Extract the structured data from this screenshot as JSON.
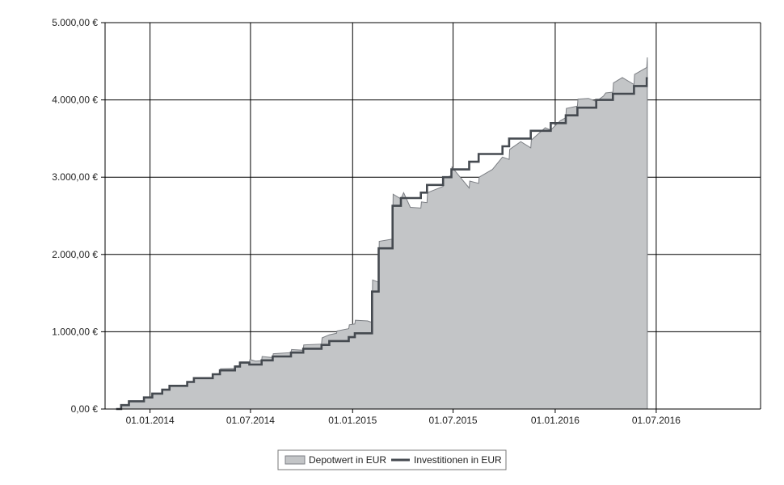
{
  "chart_data": {
    "type": "area",
    "x_axis": {
      "type": "date",
      "min": "2013-10-12",
      "max": "2017-01-05",
      "ticks": [
        {
          "date": "2014-01-01",
          "label": "01.01.2014"
        },
        {
          "date": "2014-07-01",
          "label": "01.07.2014"
        },
        {
          "date": "2015-01-01",
          "label": "01.01.2015"
        },
        {
          "date": "2015-07-01",
          "label": "01.07.2015"
        },
        {
          "date": "2016-01-01",
          "label": "01.01.2016"
        },
        {
          "date": "2016-07-01",
          "label": "01.07.2016"
        }
      ]
    },
    "y_axis": {
      "min": 0,
      "max": 5000,
      "ticks": [
        {
          "value": 0,
          "label": "0,00 €"
        },
        {
          "value": 1000,
          "label": "1.000,00 €"
        },
        {
          "value": 2000,
          "label": "2.000,00 €"
        },
        {
          "value": 3000,
          "label": "3.000,00 €"
        },
        {
          "value": 4000,
          "label": "4.000,00 €"
        },
        {
          "value": 5000,
          "label": "5.000,00 €"
        }
      ]
    },
    "grid": true,
    "legend_position": "bottom",
    "series": [
      {
        "name": "Depotwert in EUR",
        "kind": "area",
        "color": "#c3c5c7",
        "edge_color": "#7c7f84",
        "points": [
          [
            "2013-11-01",
            0
          ],
          [
            "2013-11-10",
            0
          ],
          [
            "2013-11-11",
            50
          ],
          [
            "2013-11-24",
            50
          ],
          [
            "2013-11-25",
            100
          ],
          [
            "2013-12-21",
            100
          ],
          [
            "2013-12-22",
            150
          ],
          [
            "2014-01-05",
            150
          ],
          [
            "2014-01-06",
            200
          ],
          [
            "2014-01-23",
            200
          ],
          [
            "2014-01-24",
            250
          ],
          [
            "2014-02-05",
            250
          ],
          [
            "2014-02-06",
            300
          ],
          [
            "2014-03-09",
            300
          ],
          [
            "2014-03-10",
            350
          ],
          [
            "2014-03-21",
            350
          ],
          [
            "2014-03-22",
            400
          ],
          [
            "2014-04-24",
            400
          ],
          [
            "2014-04-25",
            450
          ],
          [
            "2014-05-07",
            460
          ],
          [
            "2014-05-08",
            520
          ],
          [
            "2014-06-03",
            525
          ],
          [
            "2014-06-04",
            560
          ],
          [
            "2014-06-12",
            560
          ],
          [
            "2014-06-13",
            610
          ],
          [
            "2014-06-29",
            610
          ],
          [
            "2014-06-30",
            640
          ],
          [
            "2014-07-10",
            620
          ],
          [
            "2014-07-21",
            625
          ],
          [
            "2014-07-22",
            680
          ],
          [
            "2014-08-10",
            665
          ],
          [
            "2014-08-11",
            715
          ],
          [
            "2014-09-12",
            730
          ],
          [
            "2014-09-13",
            770
          ],
          [
            "2014-10-04",
            760
          ],
          [
            "2014-10-05",
            830
          ],
          [
            "2014-11-06",
            840
          ],
          [
            "2014-11-07",
            920
          ],
          [
            "2014-11-20",
            960
          ],
          [
            "2014-12-03",
            980
          ],
          [
            "2014-12-04",
            1010
          ],
          [
            "2014-12-25",
            1040
          ],
          [
            "2014-12-26",
            1090
          ],
          [
            "2015-01-05",
            1100
          ],
          [
            "2015-01-06",
            1150
          ],
          [
            "2015-01-28",
            1140
          ],
          [
            "2015-02-05",
            1120
          ],
          [
            "2015-02-06",
            1670
          ],
          [
            "2015-02-17",
            1640
          ],
          [
            "2015-02-18",
            2170
          ],
          [
            "2015-03-14",
            2200
          ],
          [
            "2015-03-15",
            2780
          ],
          [
            "2015-03-29",
            2720
          ],
          [
            "2015-04-03",
            2800
          ],
          [
            "2015-04-15",
            2610
          ],
          [
            "2015-05-04",
            2600
          ],
          [
            "2015-05-05",
            2680
          ],
          [
            "2015-05-15",
            2670
          ],
          [
            "2015-05-16",
            2800
          ],
          [
            "2015-06-13",
            2880
          ],
          [
            "2015-06-14",
            2990
          ],
          [
            "2015-06-28",
            3020
          ],
          [
            "2015-06-29",
            3130
          ],
          [
            "2015-07-15",
            2990
          ],
          [
            "2015-07-30",
            2860
          ],
          [
            "2015-07-31",
            2950
          ],
          [
            "2015-08-16",
            2920
          ],
          [
            "2015-08-17",
            3000
          ],
          [
            "2015-09-10",
            3100
          ],
          [
            "2015-09-28",
            3260
          ],
          [
            "2015-10-10",
            3230
          ],
          [
            "2015-10-11",
            3360
          ],
          [
            "2015-10-31",
            3460
          ],
          [
            "2015-11-18",
            3380
          ],
          [
            "2015-11-19",
            3480
          ],
          [
            "2015-12-14",
            3640
          ],
          [
            "2015-12-24",
            3610
          ],
          [
            "2016-01-10",
            3730
          ],
          [
            "2016-01-20",
            3770
          ],
          [
            "2016-01-21",
            3890
          ],
          [
            "2016-02-10",
            3920
          ],
          [
            "2016-02-11",
            4010
          ],
          [
            "2016-03-01",
            4020
          ],
          [
            "2016-03-15",
            3980
          ],
          [
            "2016-03-28",
            4050
          ],
          [
            "2016-04-01",
            4090
          ],
          [
            "2016-04-14",
            4100
          ],
          [
            "2016-04-15",
            4220
          ],
          [
            "2016-05-01",
            4290
          ],
          [
            "2016-05-22",
            4200
          ],
          [
            "2016-05-23",
            4330
          ],
          [
            "2016-06-14",
            4420
          ],
          [
            "2016-06-15",
            4550
          ]
        ]
      },
      {
        "name": "Investitionen in EUR",
        "kind": "step-line",
        "color": "#454a50",
        "points": [
          [
            "2013-11-01",
            0
          ],
          [
            "2013-11-10",
            50
          ],
          [
            "2013-11-24",
            100
          ],
          [
            "2013-12-21",
            150
          ],
          [
            "2014-01-05",
            200
          ],
          [
            "2014-01-23",
            250
          ],
          [
            "2014-02-05",
            300
          ],
          [
            "2014-03-09",
            350
          ],
          [
            "2014-03-21",
            400
          ],
          [
            "2014-04-24",
            450
          ],
          [
            "2014-05-07",
            500
          ],
          [
            "2014-06-03",
            550
          ],
          [
            "2014-06-12",
            600
          ],
          [
            "2014-06-29",
            575
          ],
          [
            "2014-07-21",
            630
          ],
          [
            "2014-08-10",
            680
          ],
          [
            "2014-09-12",
            730
          ],
          [
            "2014-10-04",
            780
          ],
          [
            "2014-11-06",
            830
          ],
          [
            "2014-11-20",
            880
          ],
          [
            "2014-12-25",
            930
          ],
          [
            "2015-01-05",
            980
          ],
          [
            "2015-02-05",
            1520
          ],
          [
            "2015-02-17",
            2080
          ],
          [
            "2015-03-14",
            2630
          ],
          [
            "2015-03-29",
            2730
          ],
          [
            "2015-05-04",
            2800
          ],
          [
            "2015-05-15",
            2900
          ],
          [
            "2015-06-13",
            3000
          ],
          [
            "2015-06-28",
            3100
          ],
          [
            "2015-07-30",
            3200
          ],
          [
            "2015-08-16",
            3300
          ],
          [
            "2015-09-28",
            3400
          ],
          [
            "2015-10-10",
            3500
          ],
          [
            "2015-11-18",
            3600
          ],
          [
            "2015-12-24",
            3700
          ],
          [
            "2016-01-20",
            3800
          ],
          [
            "2016-02-10",
            3900
          ],
          [
            "2016-03-15",
            4000
          ],
          [
            "2016-04-14",
            4080
          ],
          [
            "2016-05-22",
            4180
          ],
          [
            "2016-06-14",
            4280
          ]
        ]
      }
    ]
  }
}
